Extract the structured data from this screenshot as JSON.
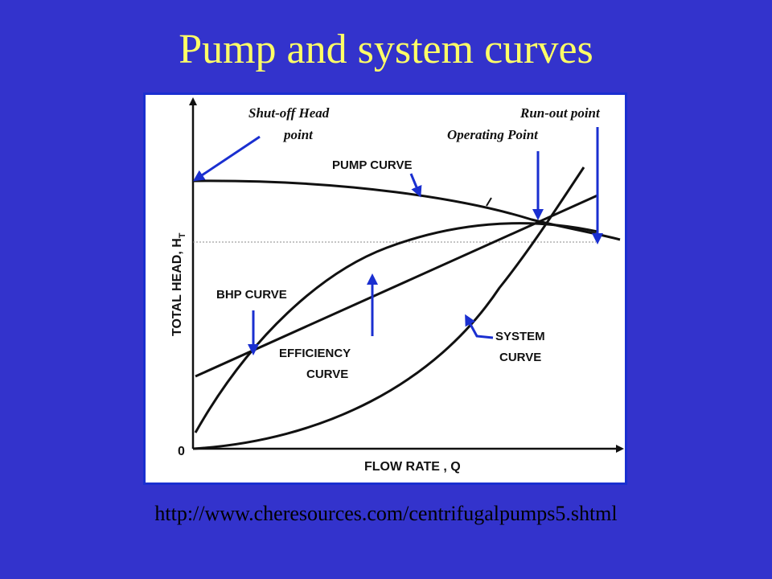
{
  "slide": {
    "title": "Pump and system curves",
    "source_url": "http://www.cheresources.com/centrifugalpumps5.shtml"
  },
  "diagram": {
    "y_axis_label": "TOTAL HEAD, H",
    "y_axis_subscript": "T",
    "x_axis_label": "FLOW RATE , Q",
    "origin_label": "0",
    "labels": {
      "shutoff_line1": "Shut-off Head",
      "shutoff_line2": "point",
      "runout": "Run-out point",
      "operating": "Operating Point",
      "pump_curve": "PUMP CURVE",
      "bhp_curve": "BHP CURVE",
      "efficiency_line1": "EFFICIENCY",
      "efficiency_line2": "CURVE",
      "system_line1": "SYSTEM",
      "system_line2": "CURVE"
    }
  },
  "colors": {
    "background": "#3333cc",
    "title": "#ffff66",
    "arrow": "#1a2fd0",
    "curve": "#111111"
  }
}
